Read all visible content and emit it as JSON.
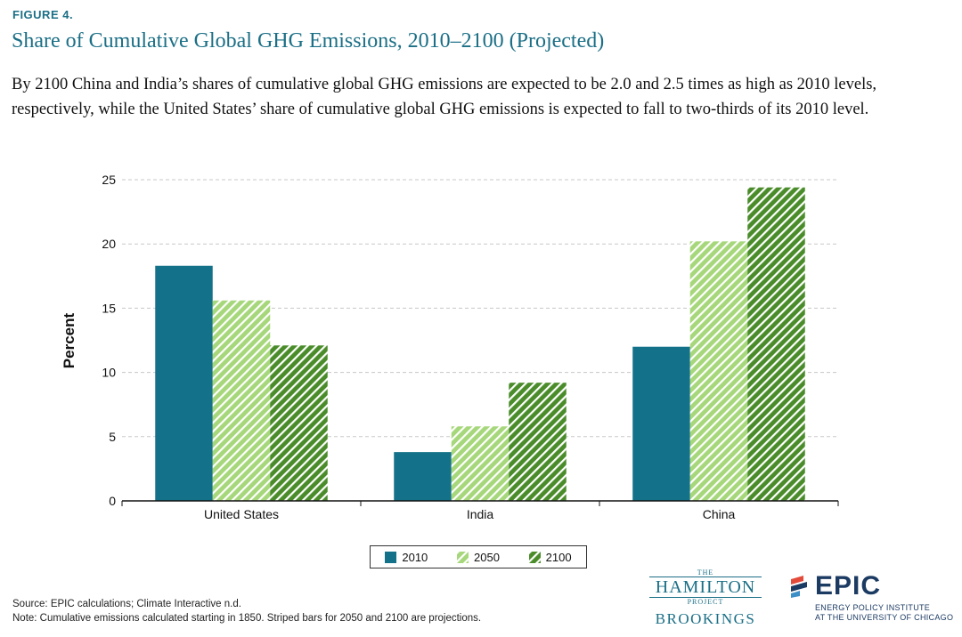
{
  "figure_label": "FIGURE 4.",
  "title": "Share of Cumulative Global GHG Emissions, 2010–2100 (Projected)",
  "subtitle": "By 2100 China and India’s shares of cumulative global GHG emissions are expected to be 2.0 and 2.5 times as high as 2010 levels, respectively, while the United States’ share of cumulative global GHG emissions is expected to fall to two-thirds of its 2010 level.",
  "source": "Source: EPIC calculations; Climate Interactive n.d.",
  "note": "Note: Cumulative emissions calculated starting in 1850. Striped bars for 2050 and 2100 are projections.",
  "logos": {
    "hamilton_the": "THE",
    "hamilton_name": "HAMILTON",
    "hamilton_project": "PROJECT",
    "brookings": "BROOKINGS",
    "epic": "EPIC",
    "epic_line1": "ENERGY POLICY INSTITUTE",
    "epic_line2": "AT THE UNIVERSITY OF CHICAGO"
  },
  "colors": {
    "s2010": "#13728a",
    "s2050_fill": "#a6d77a",
    "s2100_fill": "#4a8c2a",
    "stripe": "#ffffff",
    "title": "#1b6f86"
  },
  "chart_data": {
    "type": "bar",
    "categories": [
      "United States",
      "India",
      "China"
    ],
    "series": [
      {
        "name": "2010",
        "values": [
          18.3,
          3.8,
          12.0
        ],
        "style": "solid"
      },
      {
        "name": "2050",
        "values": [
          15.6,
          5.8,
          20.2
        ],
        "style": "striped"
      },
      {
        "name": "2100",
        "values": [
          12.1,
          9.2,
          24.4
        ],
        "style": "striped"
      }
    ],
    "xlabel": "",
    "ylabel": "Percent",
    "ylim": [
      0,
      25
    ],
    "yticks": [
      0,
      5,
      10,
      15,
      20,
      25
    ],
    "grid": true,
    "legend_position": "bottom-center"
  }
}
